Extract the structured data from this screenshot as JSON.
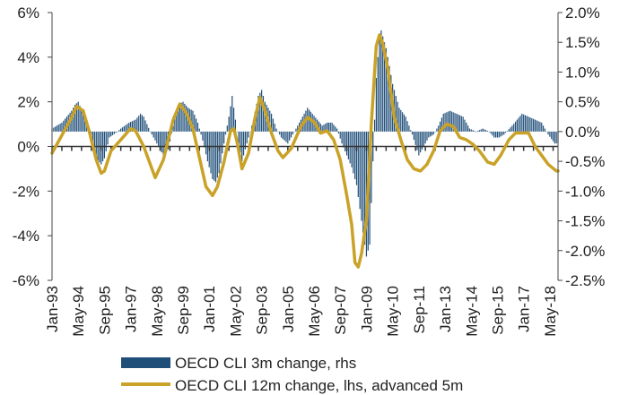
{
  "chart_data": {
    "type": "bar+line",
    "colors": {
      "bars": "#1f4e79",
      "line": "#c9a227",
      "zero": "#333333"
    },
    "grid": false,
    "legend_position": "bottom",
    "y_left": {
      "min": -6,
      "max": 6,
      "ticks": [
        -6,
        -4,
        -2,
        0,
        2,
        4,
        6
      ],
      "tick_labels": [
        "-6%",
        "-4%",
        "-2%",
        "0%",
        "2%",
        "4%",
        "6%"
      ]
    },
    "y_right": {
      "min": -2.5,
      "max": 2.0,
      "ticks": [
        -2.5,
        -2.0,
        -1.5,
        -1.0,
        -0.5,
        0.0,
        0.5,
        1.0,
        1.5,
        2.0
      ],
      "tick_labels": [
        "-2.5%",
        "-2.0%",
        "-1.5%",
        "-1.0%",
        "-0.5%",
        "0.0%",
        "0.5%",
        "1.0%",
        "1.5%",
        "2.0%"
      ]
    },
    "x_ticks": [
      "Jan-93",
      "May-94",
      "Sep-95",
      "Jan-97",
      "May-98",
      "Sep-99",
      "Jan-01",
      "May-02",
      "Sep-03",
      "Jan-05",
      "May-06",
      "Sep-07",
      "Jan-09",
      "May-10",
      "Sep-11",
      "Jan-13",
      "May-14",
      "Sep-15",
      "Jan-17",
      "May-18"
    ],
    "series": [
      {
        "name": "OECD CLI 3m change, rhs",
        "kind": "bar",
        "axis": "right",
        "points": [
          [
            "1993-01",
            0.05
          ],
          [
            "1993-07",
            0.15
          ],
          [
            "1994-01",
            0.35
          ],
          [
            "1994-03",
            0.45
          ],
          [
            "1994-05",
            0.5
          ],
          [
            "1994-08",
            0.3
          ],
          [
            "1994-12",
            0.0
          ],
          [
            "1995-04",
            -0.45
          ],
          [
            "1995-07",
            -0.55
          ],
          [
            "1995-09",
            -0.45
          ],
          [
            "1995-12",
            -0.1
          ],
          [
            "1996-05",
            0.0
          ],
          [
            "1996-07",
            0.05
          ],
          [
            "1996-12",
            0.15
          ],
          [
            "1997-04",
            0.2
          ],
          [
            "1997-07",
            0.3
          ],
          [
            "1997-09",
            0.25
          ],
          [
            "1998-01",
            0.0
          ],
          [
            "1998-05",
            -0.2
          ],
          [
            "1998-09",
            -0.4
          ],
          [
            "1998-12",
            -0.3
          ],
          [
            "1999-03",
            0.1
          ],
          [
            "1999-06",
            0.45
          ],
          [
            "1999-09",
            0.5
          ],
          [
            "1999-12",
            0.4
          ],
          [
            "2000-03",
            0.35
          ],
          [
            "2000-06",
            0.15
          ],
          [
            "2000-09",
            -0.15
          ],
          [
            "2000-12",
            -0.5
          ],
          [
            "2001-03",
            -0.8
          ],
          [
            "2001-05",
            -0.85
          ],
          [
            "2001-07",
            -0.7
          ],
          [
            "2001-10",
            -0.2
          ],
          [
            "2002-01",
            0.25
          ],
          [
            "2002-03",
            0.6
          ],
          [
            "2002-04",
            0.4
          ],
          [
            "2002-07",
            -0.2
          ],
          [
            "2002-09",
            -0.5
          ],
          [
            "2002-12",
            -0.2
          ],
          [
            "2003-04",
            0.2
          ],
          [
            "2003-07",
            0.6
          ],
          [
            "2003-09",
            0.7
          ],
          [
            "2003-11",
            0.5
          ],
          [
            "2004-03",
            0.3
          ],
          [
            "2004-06",
            0.05
          ],
          [
            "2004-09",
            -0.1
          ],
          [
            "2005-01",
            -0.2
          ],
          [
            "2005-06",
            0.05
          ],
          [
            "2005-09",
            0.2
          ],
          [
            "2006-01",
            0.4
          ],
          [
            "2006-04",
            0.3
          ],
          [
            "2006-07",
            0.2
          ],
          [
            "2006-10",
            0.1
          ],
          [
            "2007-01",
            0.15
          ],
          [
            "2007-04",
            0.15
          ],
          [
            "2007-07",
            0.05
          ],
          [
            "2007-10",
            -0.2
          ],
          [
            "2008-01",
            -0.4
          ],
          [
            "2008-04",
            -0.6
          ],
          [
            "2008-07",
            -0.9
          ],
          [
            "2008-10",
            -1.5
          ],
          [
            "2009-01",
            -2.1
          ],
          [
            "2009-03",
            -1.9
          ],
          [
            "2009-05",
            -0.5
          ],
          [
            "2009-07",
            0.9
          ],
          [
            "2009-09",
            1.6
          ],
          [
            "2009-10",
            1.7
          ],
          [
            "2010-01",
            1.4
          ],
          [
            "2010-05",
            0.8
          ],
          [
            "2010-09",
            0.4
          ],
          [
            "2011-01",
            0.25
          ],
          [
            "2011-05",
            -0.05
          ],
          [
            "2011-09",
            -0.4
          ],
          [
            "2011-12",
            -0.25
          ],
          [
            "2012-03",
            -0.1
          ],
          [
            "2012-06",
            -0.05
          ],
          [
            "2012-09",
            0.1
          ],
          [
            "2012-12",
            0.3
          ],
          [
            "2013-04",
            0.35
          ],
          [
            "2013-08",
            0.3
          ],
          [
            "2013-12",
            0.25
          ],
          [
            "2014-04",
            0.05
          ],
          [
            "2014-08",
            0.0
          ],
          [
            "2014-12",
            0.05
          ],
          [
            "2015-04",
            0.0
          ],
          [
            "2015-07",
            -0.1
          ],
          [
            "2015-10",
            -0.1
          ],
          [
            "2016-01",
            -0.05
          ],
          [
            "2016-06",
            0.1
          ],
          [
            "2016-12",
            0.3
          ],
          [
            "2017-04",
            0.25
          ],
          [
            "2017-08",
            0.2
          ],
          [
            "2017-12",
            0.15
          ],
          [
            "2018-04",
            -0.05
          ],
          [
            "2018-08",
            -0.2
          ]
        ]
      },
      {
        "name": "OECD CLI 12m change, lhs, advanced 5m",
        "kind": "line",
        "axis": "left",
        "points": [
          [
            "1993-01",
            -0.3
          ],
          [
            "1993-07",
            0.5
          ],
          [
            "1994-01",
            1.3
          ],
          [
            "1994-04",
            1.8
          ],
          [
            "1994-08",
            1.6
          ],
          [
            "1994-12",
            0.6
          ],
          [
            "1995-04",
            -0.6
          ],
          [
            "1995-07",
            -1.2
          ],
          [
            "1995-09",
            -1.1
          ],
          [
            "1996-01",
            -0.2
          ],
          [
            "1996-07",
            0.3
          ],
          [
            "1997-01",
            0.8
          ],
          [
            "1997-04",
            0.7
          ],
          [
            "1997-09",
            0.0
          ],
          [
            "1998-01",
            -0.8
          ],
          [
            "1998-04",
            -1.4
          ],
          [
            "1998-09",
            -0.6
          ],
          [
            "1999-03",
            1.2
          ],
          [
            "1999-07",
            1.9
          ],
          [
            "1999-11",
            1.5
          ],
          [
            "2000-03",
            0.8
          ],
          [
            "2000-07",
            -0.5
          ],
          [
            "2000-11",
            -1.8
          ],
          [
            "2001-03",
            -2.2
          ],
          [
            "2001-06",
            -1.8
          ],
          [
            "2001-10",
            -0.7
          ],
          [
            "2002-02",
            0.7
          ],
          [
            "2002-04",
            0.8
          ],
          [
            "2002-06",
            0.2
          ],
          [
            "2002-09",
            -1.0
          ],
          [
            "2003-01",
            -0.3
          ],
          [
            "2003-05",
            1.3
          ],
          [
            "2003-08",
            2.2
          ],
          [
            "2003-11",
            1.6
          ],
          [
            "2004-03",
            0.6
          ],
          [
            "2004-07",
            -0.2
          ],
          [
            "2004-10",
            -0.5
          ],
          [
            "2005-03",
            -0.1
          ],
          [
            "2005-09",
            0.9
          ],
          [
            "2006-01",
            1.3
          ],
          [
            "2006-05",
            1.1
          ],
          [
            "2006-09",
            0.6
          ],
          [
            "2007-01",
            0.7
          ],
          [
            "2007-05",
            0.3
          ],
          [
            "2007-09",
            -0.6
          ],
          [
            "2008-01",
            -2.2
          ],
          [
            "2008-04",
            -3.5
          ],
          [
            "2008-06",
            -5.2
          ],
          [
            "2008-08",
            -5.4
          ],
          [
            "2008-10",
            -4.8
          ],
          [
            "2009-01",
            -3.3
          ],
          [
            "2009-04",
            1.0
          ],
          [
            "2009-07",
            4.5
          ],
          [
            "2009-09",
            5.0
          ],
          [
            "2009-11",
            4.6
          ],
          [
            "2010-02",
            3.5
          ],
          [
            "2010-06",
            1.3
          ],
          [
            "2010-10",
            0.3
          ],
          [
            "2011-02",
            -0.6
          ],
          [
            "2011-06",
            -1.0
          ],
          [
            "2011-10",
            -1.1
          ],
          [
            "2012-02",
            -0.8
          ],
          [
            "2012-06",
            -0.2
          ],
          [
            "2012-10",
            0.7
          ],
          [
            "2013-02",
            1.0
          ],
          [
            "2013-06",
            0.9
          ],
          [
            "2013-10",
            0.4
          ],
          [
            "2014-02",
            0.3
          ],
          [
            "2014-06",
            0.1
          ],
          [
            "2014-10",
            -0.2
          ],
          [
            "2015-03",
            -0.7
          ],
          [
            "2015-07",
            -0.8
          ],
          [
            "2015-11",
            -0.4
          ],
          [
            "2016-04",
            0.3
          ],
          [
            "2016-08",
            0.6
          ],
          [
            "2016-12",
            0.6
          ],
          [
            "2017-04",
            0.6
          ],
          [
            "2017-08",
            0.0
          ],
          [
            "2017-12",
            -0.4
          ],
          [
            "2018-04",
            -0.8
          ],
          [
            "2018-09",
            -1.1
          ]
        ]
      }
    ]
  }
}
